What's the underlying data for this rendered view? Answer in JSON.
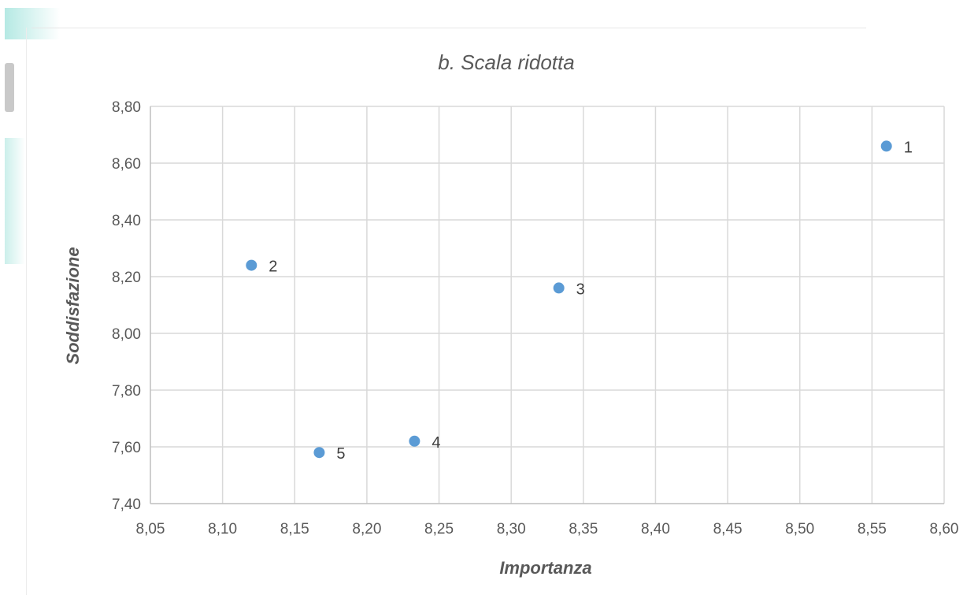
{
  "chart_data": {
    "type": "scatter",
    "title": "b. Scala ridotta",
    "xlabel": "Importanza",
    "ylabel": "Soddisfazione",
    "xlim": [
      8.05,
      8.6
    ],
    "ylim": [
      7.4,
      8.8
    ],
    "xticks": [
      "8,05",
      "8,10",
      "8,15",
      "8,20",
      "8,25",
      "8,30",
      "8,35",
      "8,40",
      "8,45",
      "8,50",
      "8,55",
      "8,60"
    ],
    "yticks": [
      "7,40",
      "7,60",
      "7,80",
      "8,00",
      "8,20",
      "8,40",
      "8,60",
      "8,80"
    ],
    "grid": true,
    "legend": "none",
    "marker_color": "#5b9bd5",
    "points": [
      {
        "label": "1",
        "x": 8.56,
        "y": 8.66
      },
      {
        "label": "2",
        "x": 8.12,
        "y": 8.24
      },
      {
        "label": "3",
        "x": 8.333,
        "y": 8.16
      },
      {
        "label": "4",
        "x": 8.233,
        "y": 7.62
      },
      {
        "label": "5",
        "x": 8.167,
        "y": 7.58
      }
    ]
  }
}
